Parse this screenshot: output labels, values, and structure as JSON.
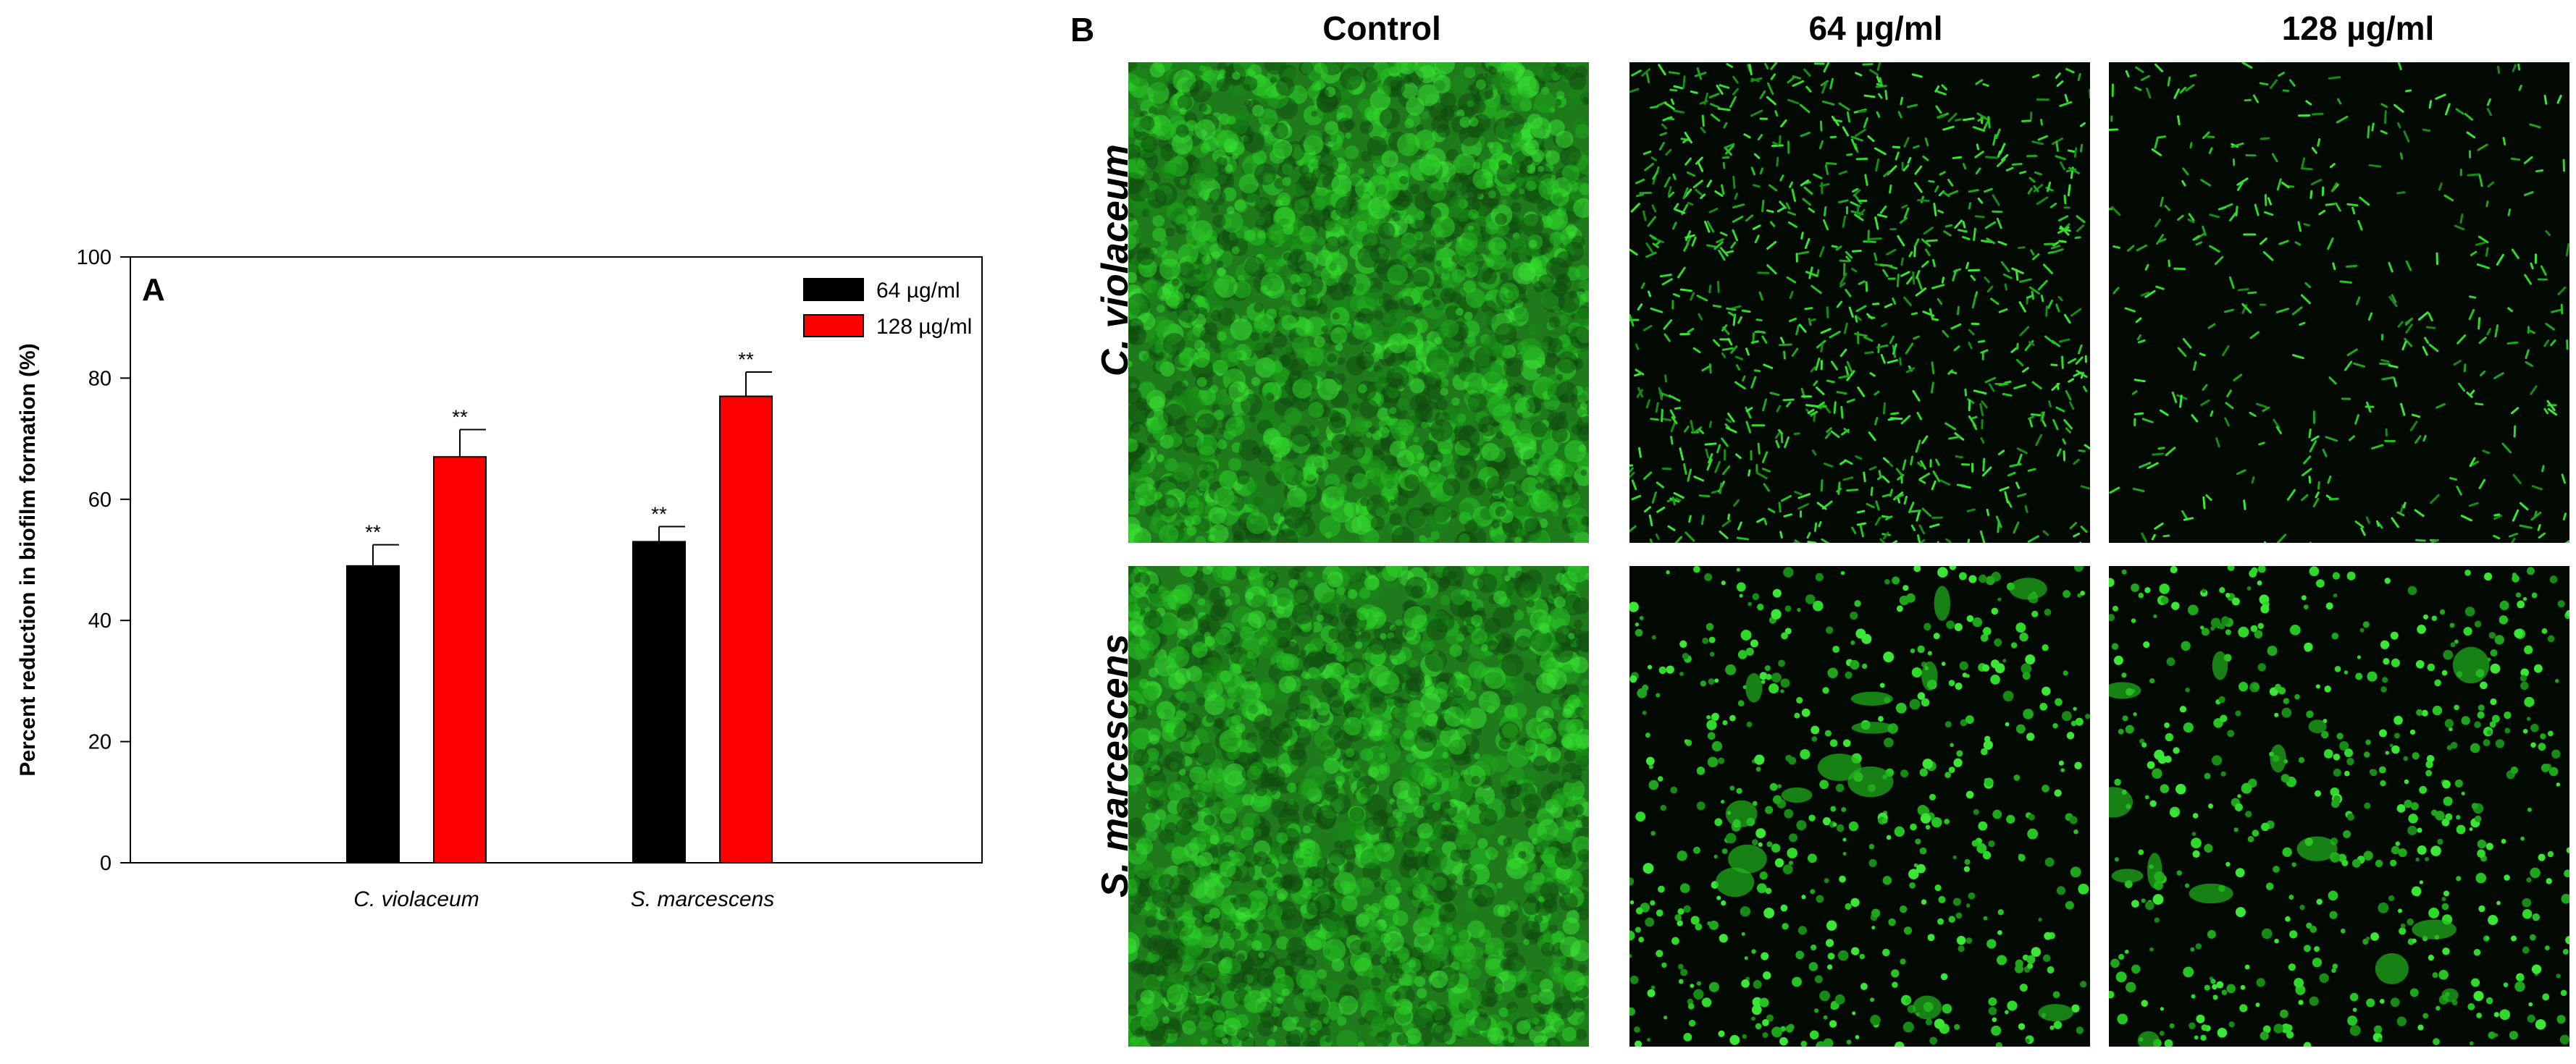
{
  "panel_a": {
    "letter": "A",
    "chart_data": {
      "type": "bar",
      "categories": [
        "C. violaceum",
        "S. marcescens"
      ],
      "series": [
        {
          "name": "64 µg/ml",
          "color": "#000000",
          "values": [
            49,
            53
          ],
          "errors": [
            3.5,
            2.5
          ],
          "annotations": [
            "**",
            "**"
          ]
        },
        {
          "name": "128 µg/ml",
          "color": "#ff0000",
          "values": [
            67,
            77
          ],
          "errors": [
            4.5,
            4
          ],
          "annotations": [
            "**",
            "**"
          ]
        }
      ],
      "ylabel": "Percent reduction in biofilm formation (%)",
      "xlabel": "",
      "ylim": [
        0,
        100
      ],
      "yticks": [
        0,
        20,
        40,
        60,
        80,
        100
      ],
      "grid": false,
      "legend": "top-right"
    }
  },
  "panel_b": {
    "letter": "B",
    "columns": [
      "Control",
      "64 µg/ml",
      "128 µg/ml"
    ],
    "rows": [
      {
        "label": "C. violaceum",
        "images": [
          "dense-green-biofilm",
          "scattered-rod-cells",
          "sparse-rod-cells"
        ]
      },
      {
        "label": "S. marcescens",
        "images": [
          "dense-green-biofilm",
          "scattered-clumps",
          "scattered-clumps"
        ]
      }
    ],
    "colors": {
      "fluorescence": "#22c21e",
      "background": "#030903"
    }
  }
}
